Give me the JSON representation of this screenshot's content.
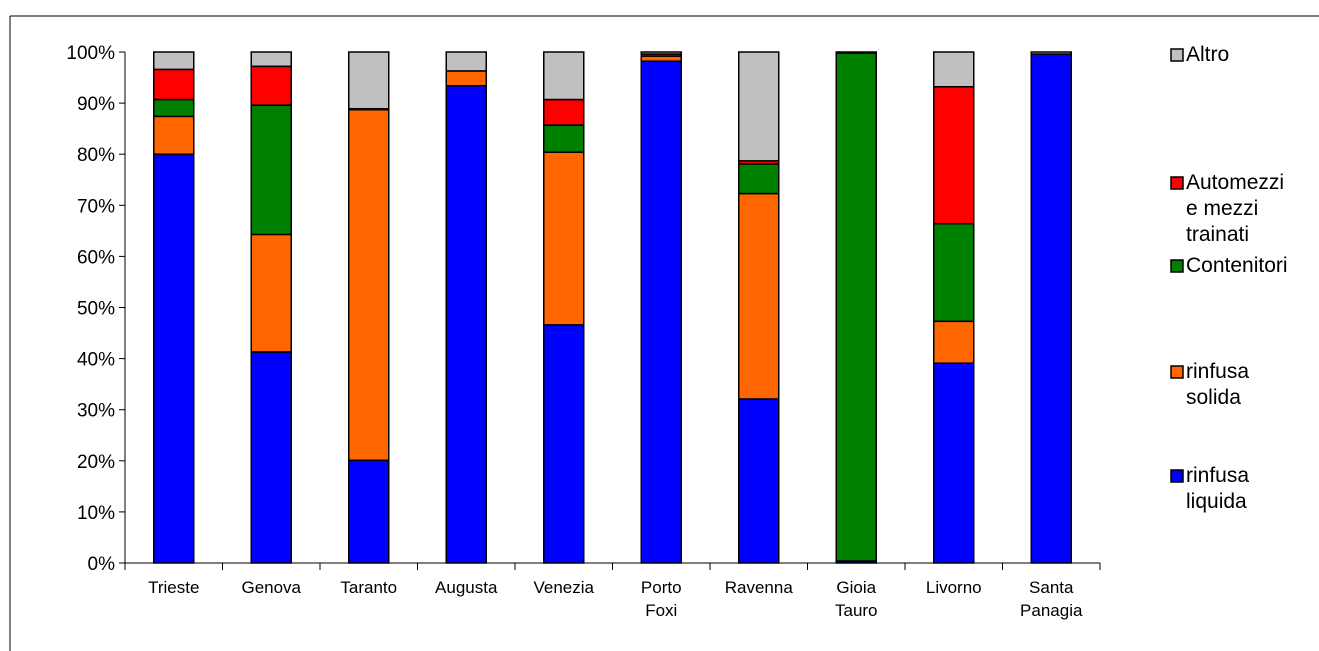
{
  "chart_data": {
    "type": "bar",
    "stacked": true,
    "percent": true,
    "categories": [
      [
        "Trieste"
      ],
      [
        "Genova"
      ],
      [
        "Taranto"
      ],
      [
        "Augusta"
      ],
      [
        "Venezia"
      ],
      [
        "Porto",
        "Foxi"
      ],
      [
        "Ravenna"
      ],
      [
        "Gioia",
        "Tauro"
      ],
      [
        "Livorno"
      ],
      [
        "Santa",
        "Panagia"
      ]
    ],
    "series": [
      {
        "name": [
          "rinfusa",
          "liquida"
        ],
        "color": "#0000ff",
        "values": [
          80.0,
          41.3,
          20.1,
          93.4,
          46.6,
          98.2,
          32.1,
          0.4,
          39.1,
          99.6
        ]
      },
      {
        "name": [
          "rinfusa",
          "solida"
        ],
        "color": "#ff6600",
        "values": [
          7.4,
          23.0,
          68.6,
          2.9,
          33.8,
          1.0,
          40.2,
          0.0,
          8.2,
          0.0
        ]
      },
      {
        "name": [
          "Contenitori"
        ],
        "color": "#008000",
        "values": [
          3.3,
          25.3,
          0.0,
          0.0,
          5.3,
          0.0,
          5.8,
          99.4,
          19.1,
          0.0
        ]
      },
      {
        "name": [
          "Automezzi",
          "e mezzi",
          "trainati"
        ],
        "color": "#ff0000",
        "values": [
          5.9,
          7.6,
          0.2,
          0.0,
          5.0,
          0.4,
          0.6,
          0.0,
          26.8,
          0.0
        ]
      },
      {
        "name": [
          "Altro"
        ],
        "color": "#c0c0c0",
        "values": [
          3.4,
          2.8,
          11.1,
          3.7,
          9.3,
          0.4,
          21.3,
          0.2,
          6.8,
          0.4
        ]
      }
    ],
    "ylim": [
      0,
      100
    ],
    "yticks": [
      "0%",
      "10%",
      "20%",
      "30%",
      "40%",
      "50%",
      "60%",
      "70%",
      "80%",
      "90%",
      "100%"
    ],
    "legend_position": "right",
    "legend_order": [
      4,
      3,
      2,
      1,
      0
    ],
    "grid": false
  }
}
